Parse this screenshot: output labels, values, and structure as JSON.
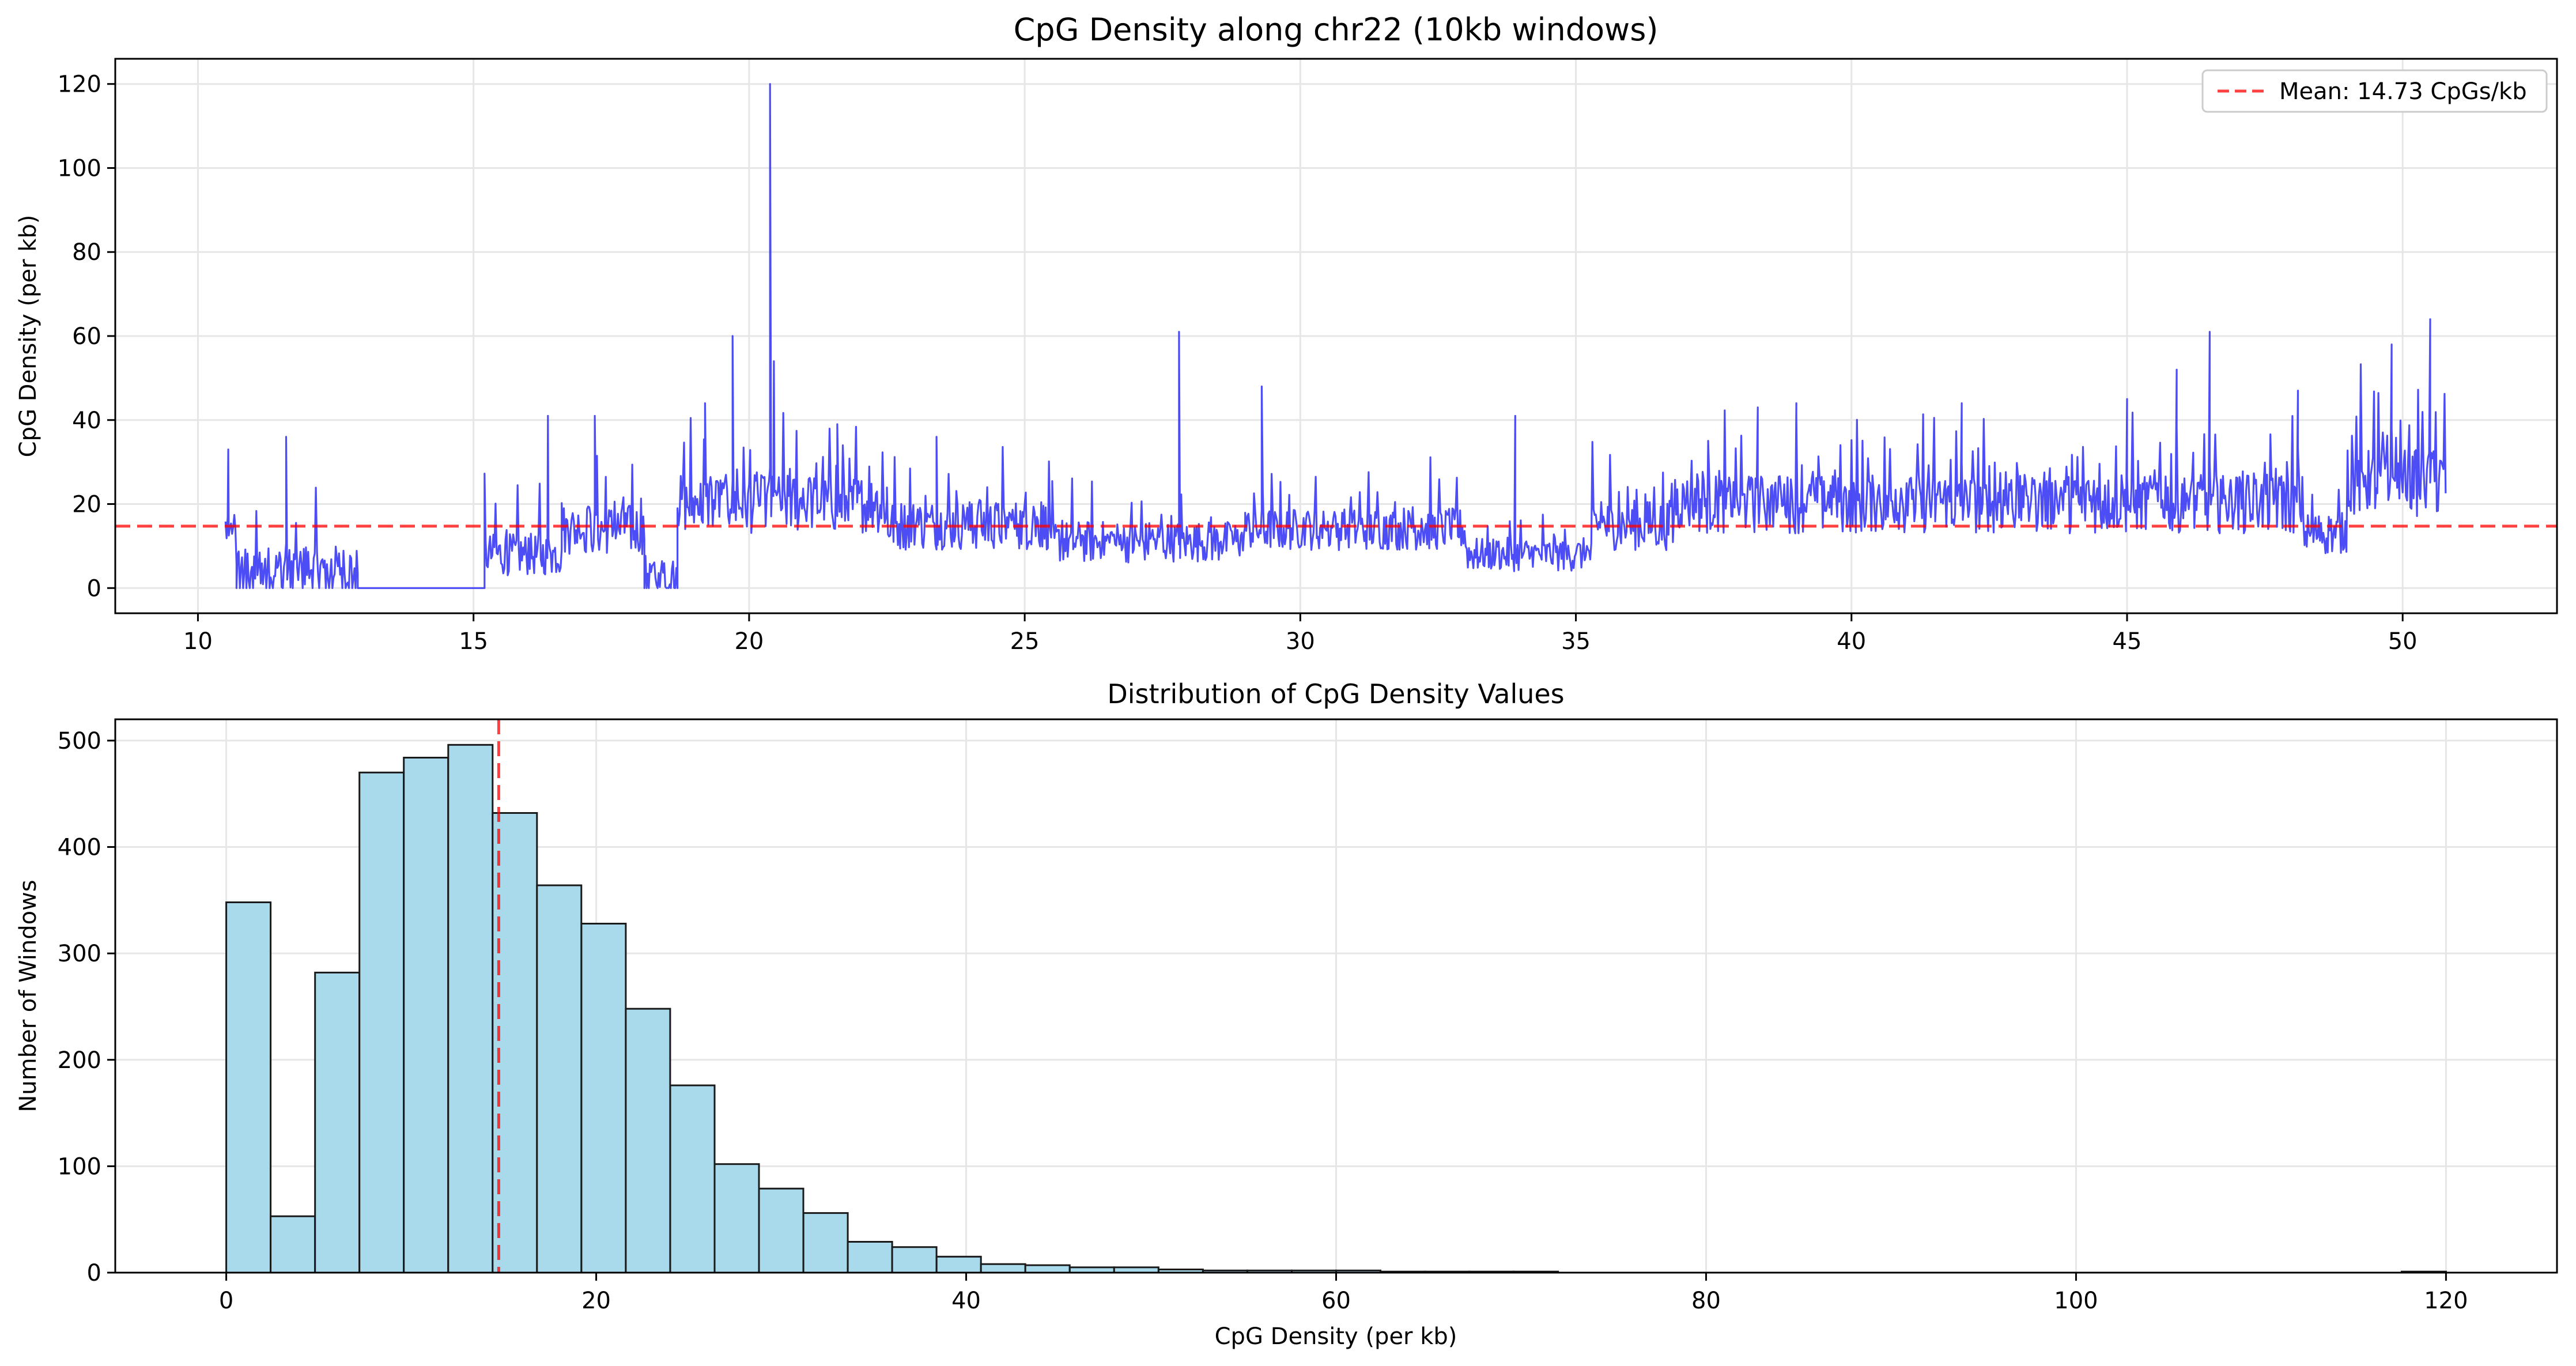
{
  "chart_data": [
    {
      "type": "line",
      "title": "CpG Density along chr22 (10kb windows)",
      "xlabel": "",
      "ylabel": "CpG Density (per kb)",
      "xlim": [
        8.5,
        52.8
      ],
      "ylim": [
        -6,
        126
      ],
      "xticks": [
        10,
        15,
        20,
        25,
        30,
        35,
        40,
        45,
        50
      ],
      "yticks": [
        0,
        20,
        40,
        60,
        80,
        100,
        120
      ],
      "grid": true,
      "legend_position": "top-right",
      "series": [
        {
          "name": "",
          "color": "#3a3af5",
          "segments": [
            {
              "x_start": 10.5,
              "x_end": 10.7,
              "level": 10,
              "spread": 7,
              "spike_every": 4,
              "spike_height": 12,
              "zero_every": 0
            },
            {
              "x_start": 10.7,
              "x_end": 12.9,
              "level": 5,
              "spread": 5,
              "spike_every": 9,
              "spike_height": 16,
              "zero_every": 3
            },
            {
              "x_start": 12.9,
              "x_end": 15.2,
              "level": 0,
              "spread": 0,
              "spike_every": 0,
              "spike_height": 0,
              "zero_every": 0
            },
            {
              "x_start": 15.2,
              "x_end": 16.6,
              "level": 8,
              "spread": 5,
              "spike_every": 10,
              "spike_height": 18,
              "zero_every": 0
            },
            {
              "x_start": 16.6,
              "x_end": 18.1,
              "level": 14,
              "spread": 6,
              "spike_every": 8,
              "spike_height": 20,
              "zero_every": 0
            },
            {
              "x_start": 18.1,
              "x_end": 18.7,
              "level": 4,
              "spread": 4,
              "spike_every": 0,
              "spike_height": 0,
              "zero_every": 2
            },
            {
              "x_start": 18.7,
              "x_end": 22.5,
              "level": 20,
              "spread": 7,
              "spike_every": 6,
              "spike_height": 18,
              "zero_every": 0
            },
            {
              "x_start": 22.5,
              "x_end": 25.5,
              "level": 15,
              "spread": 6,
              "spike_every": 7,
              "spike_height": 16,
              "zero_every": 0
            },
            {
              "x_start": 25.5,
              "x_end": 29.0,
              "level": 11,
              "spread": 5,
              "spike_every": 9,
              "spike_height": 12,
              "zero_every": 0
            },
            {
              "x_start": 29.0,
              "x_end": 33.0,
              "level": 14,
              "spread": 5,
              "spike_every": 8,
              "spike_height": 14,
              "zero_every": 0
            },
            {
              "x_start": 33.0,
              "x_end": 35.3,
              "level": 8,
              "spread": 4,
              "spike_every": 10,
              "spike_height": 8,
              "zero_every": 0
            },
            {
              "x_start": 35.3,
              "x_end": 36.8,
              "level": 15,
              "spread": 6,
              "spike_every": 8,
              "spike_height": 15,
              "zero_every": 0
            },
            {
              "x_start": 36.8,
              "x_end": 48.2,
              "level": 20,
              "spread": 7,
              "spike_every": 5,
              "spike_height": 18,
              "zero_every": 0
            },
            {
              "x_start": 48.2,
              "x_end": 49.0,
              "level": 13,
              "spread": 5,
              "spike_every": 8,
              "spike_height": 10,
              "zero_every": 0
            },
            {
              "x_start": 49.0,
              "x_end": 50.8,
              "level": 25,
              "spread": 8,
              "spike_every": 4,
              "spike_height": 22,
              "zero_every": 0
            }
          ],
          "spikes": [
            {
              "x": 10.55,
              "y": 33
            },
            {
              "x": 11.6,
              "y": 36
            },
            {
              "x": 16.35,
              "y": 41
            },
            {
              "x": 17.2,
              "y": 41
            },
            {
              "x": 19.2,
              "y": 44
            },
            {
              "x": 19.7,
              "y": 60
            },
            {
              "x": 20.38,
              "y": 120
            },
            {
              "x": 20.45,
              "y": 54
            },
            {
              "x": 21.6,
              "y": 39
            },
            {
              "x": 23.4,
              "y": 36
            },
            {
              "x": 27.8,
              "y": 61
            },
            {
              "x": 29.3,
              "y": 48
            },
            {
              "x": 33.9,
              "y": 41
            },
            {
              "x": 38.3,
              "y": 43
            },
            {
              "x": 39.0,
              "y": 44
            },
            {
              "x": 42.0,
              "y": 44
            },
            {
              "x": 45.0,
              "y": 45
            },
            {
              "x": 45.9,
              "y": 52
            },
            {
              "x": 46.5,
              "y": 61
            },
            {
              "x": 48.1,
              "y": 47
            },
            {
              "x": 49.8,
              "y": 58
            },
            {
              "x": 50.5,
              "y": 64
            }
          ]
        }
      ],
      "hline": {
        "y": 14.73,
        "label": "Mean: 14.73 CpGs/kb",
        "color": "#ff0000",
        "style": "dashed"
      }
    },
    {
      "type": "bar",
      "title": "Distribution of CpG Density Values",
      "xlabel": "CpG Density (per kb)",
      "ylabel": "Number of Windows",
      "xlim": [
        -6,
        126
      ],
      "ylim": [
        0,
        520
      ],
      "xticks": [
        0,
        20,
        40,
        60,
        80,
        100,
        120
      ],
      "yticks": [
        0,
        100,
        200,
        300,
        400,
        500
      ],
      "grid": true,
      "bin_width": 2.4,
      "bin_start": 0,
      "bar_color": "#a9daec",
      "edge_color": "#1a1a1a",
      "values": [
        348,
        53,
        282,
        470,
        484,
        496,
        432,
        364,
        328,
        248,
        176,
        102,
        79,
        56,
        29,
        24,
        15,
        8,
        7,
        5,
        5,
        3,
        2,
        2,
        2,
        2,
        1,
        1,
        1,
        1,
        0,
        0,
        0,
        0,
        0,
        0,
        0,
        0,
        0,
        0,
        0,
        0,
        0,
        0,
        0,
        0,
        0,
        0,
        0,
        1
      ],
      "vline": {
        "x": 14.73,
        "color": "#ff0000",
        "style": "dashed"
      }
    }
  ]
}
